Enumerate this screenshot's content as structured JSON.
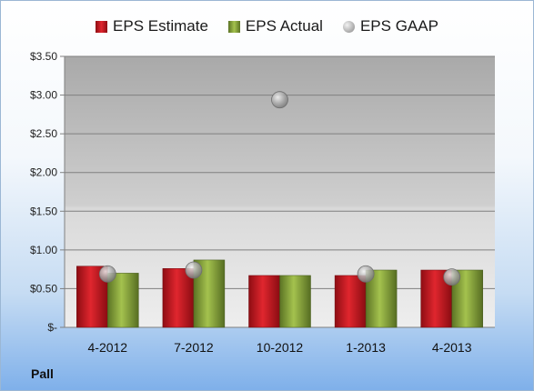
{
  "company_label": "Pall",
  "chart_data": {
    "type": "bar",
    "categories": [
      "4-2012",
      "7-2012",
      "10-2012",
      "1-2013",
      "4-2013"
    ],
    "series": [
      {
        "name": "EPS Estimate",
        "type": "bar",
        "color": "#c0121b",
        "values": [
          0.79,
          0.76,
          0.67,
          0.67,
          0.74
        ]
      },
      {
        "name": "EPS Actual",
        "type": "bar",
        "color": "#7e9b34",
        "values": [
          0.7,
          0.87,
          0.67,
          0.74,
          0.74
        ]
      },
      {
        "name": "EPS GAAP",
        "type": "scatter",
        "color": "#b8b8b8",
        "values": [
          0.69,
          0.74,
          2.94,
          0.69,
          0.65
        ]
      }
    ],
    "yticks": [
      "$-",
      "$0.50",
      "$1.00",
      "$1.50",
      "$2.00",
      "$2.50",
      "$3.00",
      "$3.50"
    ],
    "ylim": [
      0,
      3.5
    ],
    "grid": true,
    "legend_position": "top"
  }
}
